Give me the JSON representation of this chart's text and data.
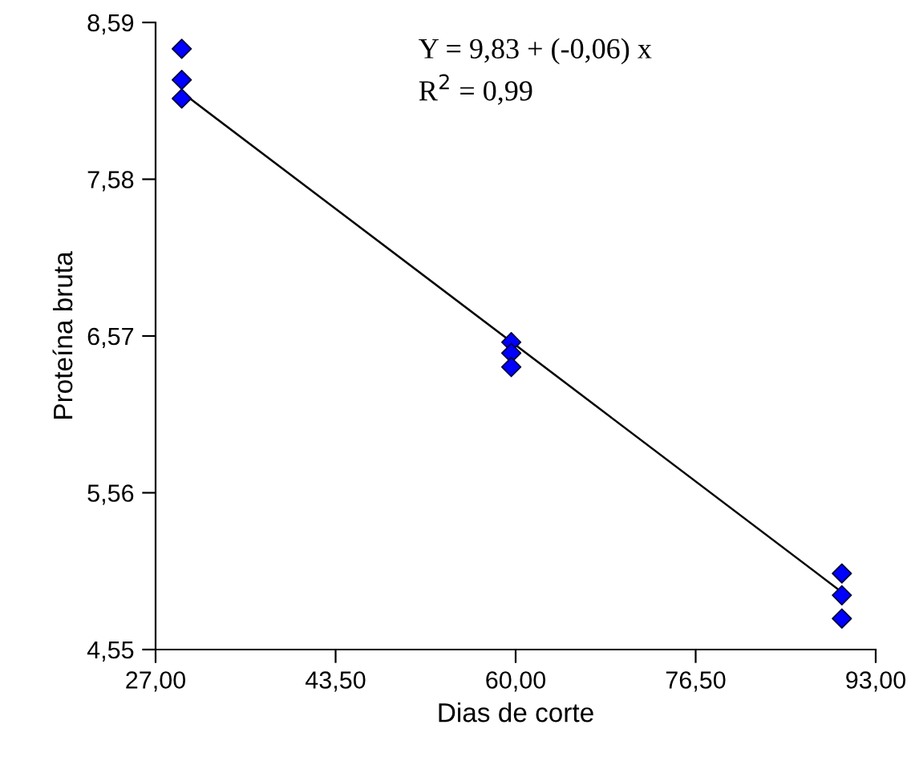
{
  "chart_data": {
    "type": "scatter",
    "xlabel": "Dias de corte",
    "ylabel": "Proteína bruta",
    "annotations": [
      "Y = 9,83 + (-0,06) x",
      "R$^{2}$ = 0,99"
    ],
    "series": [
      {
        "color": "#0000ff",
        "x": [
          29.4,
          29.4,
          29.4,
          59.6,
          59.6,
          59.6,
          89.9,
          89.9,
          89.9
        ],
        "values": [
          8.42,
          8.22,
          8.1,
          6.53,
          6.46,
          6.37,
          5.04,
          4.9,
          4.75
        ],
        "marker": "diamond"
      },
      {
        "type": "line",
        "color": "#000000",
        "x": [
          29.4,
          89.9
        ],
        "values": [
          8.14,
          4.92
        ],
        "marker": "none"
      }
    ],
    "xlim": [
      27,
      93
    ],
    "ylim": [
      4.55,
      8.59
    ],
    "xticks": [
      {
        "value": 27,
        "label": "27,00"
      },
      {
        "value": 43.5,
        "label": "43,50"
      },
      {
        "value": 60,
        "label": "60,00"
      },
      {
        "value": 76.5,
        "label": "76,50"
      },
      {
        "value": 93,
        "label": "93,00"
      }
    ],
    "yticks": [
      {
        "value": 4.55,
        "label": "4,55"
      },
      {
        "value": 5.56,
        "label": "5,56"
      },
      {
        "value": 6.57,
        "label": "6,57"
      },
      {
        "value": 7.58,
        "label": "7,58"
      },
      {
        "value": 8.59,
        "label": "8,59"
      }
    ],
    "grid": false,
    "legend": false
  }
}
